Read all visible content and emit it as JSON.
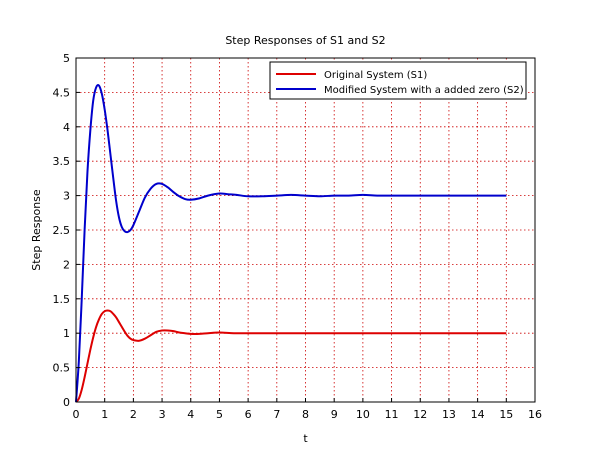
{
  "chart_data": {
    "type": "line",
    "title": "Step Responses of S1 and S2",
    "xlabel": "t",
    "ylabel": "Step Response",
    "xlim": [
      0,
      16
    ],
    "ylim": [
      0,
      5
    ],
    "x_ticks": [
      "0",
      "1",
      "2",
      "3",
      "4",
      "5",
      "6",
      "7",
      "8",
      "9",
      "10",
      "11",
      "12",
      "13",
      "14",
      "15",
      "16"
    ],
    "y_ticks": [
      "0",
      "0.5",
      "1",
      "1.5",
      "2",
      "2.5",
      "3",
      "3.5",
      "4",
      "4.5",
      "5"
    ],
    "grid": true,
    "legend_position": "top-right",
    "series": [
      {
        "name": "Original System (S1)",
        "color": "#dd0000",
        "x": [
          0,
          0.1,
          0.2,
          0.3,
          0.4,
          0.5,
          0.6,
          0.7,
          0.8,
          0.9,
          1.0,
          1.1,
          1.2,
          1.3,
          1.4,
          1.5,
          1.6,
          1.7,
          1.8,
          1.9,
          2.0,
          2.2,
          2.4,
          2.6,
          2.8,
          3.0,
          3.2,
          3.4,
          3.6,
          3.8,
          4.0,
          4.3,
          4.6,
          5.0,
          5.5,
          6.0,
          6.5,
          7.0,
          7.5,
          8.0,
          8.5,
          9.0,
          9.5,
          10.0,
          11.0,
          12.0,
          13.0,
          14.0,
          15.0
        ],
        "y": [
          0,
          0.05,
          0.18,
          0.36,
          0.56,
          0.76,
          0.94,
          1.09,
          1.2,
          1.28,
          1.32,
          1.33,
          1.32,
          1.28,
          1.23,
          1.16,
          1.09,
          1.02,
          0.96,
          0.92,
          0.9,
          0.89,
          0.92,
          0.97,
          1.02,
          1.04,
          1.04,
          1.03,
          1.01,
          1.0,
          0.99,
          0.99,
          1.0,
          1.01,
          1.0,
          1.0,
          1.0,
          1.0,
          1.0,
          1.0,
          1.0,
          1.0,
          1.0,
          1.0,
          1.0,
          1.0,
          1.0,
          1.0,
          1.0
        ]
      },
      {
        "name": "Modified System with a added zero (S2)",
        "color": "#0000cc",
        "x": [
          0,
          0.1,
          0.2,
          0.3,
          0.4,
          0.5,
          0.6,
          0.7,
          0.8,
          0.9,
          1.0,
          1.1,
          1.2,
          1.3,
          1.4,
          1.5,
          1.6,
          1.7,
          1.8,
          1.9,
          2.0,
          2.2,
          2.4,
          2.6,
          2.8,
          3.0,
          3.2,
          3.4,
          3.6,
          3.8,
          4.0,
          4.3,
          4.6,
          5.0,
          5.3,
          5.6,
          6.0,
          6.5,
          7.0,
          7.5,
          8.0,
          8.5,
          9.0,
          9.5,
          10.0,
          10.5,
          11.0,
          12.0,
          13.0,
          14.0,
          15.0
        ],
        "y": [
          0,
          0.6,
          1.5,
          2.5,
          3.35,
          3.95,
          4.38,
          4.57,
          4.6,
          4.48,
          4.25,
          3.95,
          3.6,
          3.25,
          2.92,
          2.68,
          2.54,
          2.48,
          2.47,
          2.5,
          2.57,
          2.77,
          2.97,
          3.1,
          3.17,
          3.17,
          3.12,
          3.05,
          2.99,
          2.95,
          2.94,
          2.96,
          3.0,
          3.03,
          3.02,
          3.01,
          2.99,
          2.99,
          3.0,
          3.01,
          3.0,
          2.99,
          3.0,
          3.0,
          3.01,
          3.0,
          3.0,
          3.0,
          3.0,
          3.0,
          3.0
        ]
      }
    ]
  }
}
